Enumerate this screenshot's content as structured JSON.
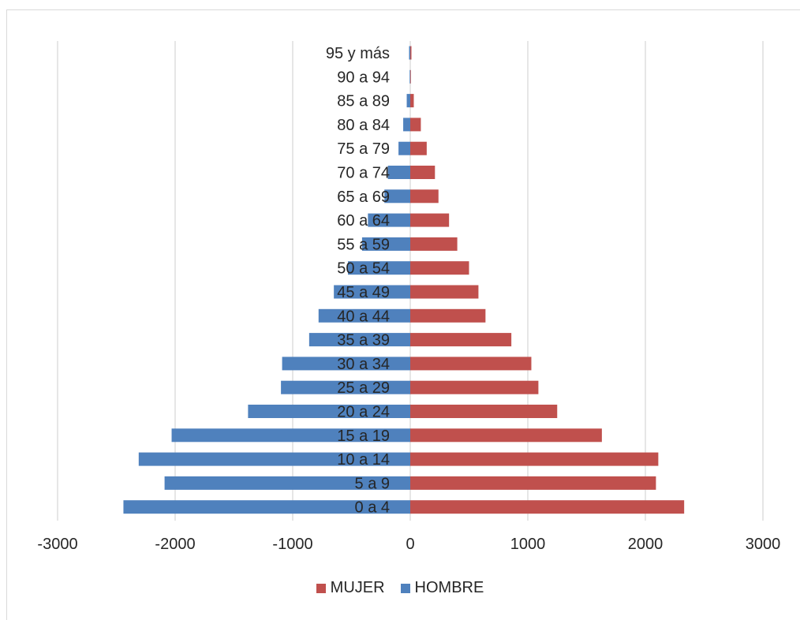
{
  "colors": {
    "mujer": "#c0504d",
    "hombre": "#4f81bd",
    "grid": "#d9d9d9",
    "text": "#262626"
  },
  "legend": {
    "mujer": "MUJER",
    "hombre": "HOMBRE"
  },
  "chart_data": {
    "type": "bar",
    "orientation": "horizontal",
    "title": "",
    "xlim": [
      -3000,
      3000
    ],
    "xticks": [
      -3000,
      -2000,
      -1000,
      0,
      1000,
      2000,
      3000
    ],
    "grid": true,
    "legend_position": "bottom",
    "categories": [
      "95 y más",
      "90 a 94",
      "85 a 89",
      "80 a 84",
      "75 a 79",
      "70 a 74",
      "65 a 69",
      "60 a 64",
      "55 a 59",
      "50 a 54",
      "45 a 49",
      "40 a 44",
      "35 a 39",
      "30 a 34",
      "25 a 29",
      "20 a 24",
      "15 a 19",
      "10 a 14",
      "5 a 9",
      "0 a 4"
    ],
    "series": [
      {
        "name": "HOMBRE",
        "values": [
          -10,
          -5,
          -30,
          -60,
          -100,
          -190,
          -220,
          -360,
          -410,
          -530,
          -650,
          -780,
          -860,
          -1090,
          -1100,
          -1380,
          -2030,
          -2310,
          -2090,
          -2440
        ]
      },
      {
        "name": "MUJER",
        "values": [
          10,
          5,
          30,
          90,
          140,
          210,
          240,
          330,
          400,
          500,
          580,
          640,
          860,
          1030,
          1090,
          1250,
          1630,
          2110,
          2090,
          2330
        ]
      }
    ]
  }
}
